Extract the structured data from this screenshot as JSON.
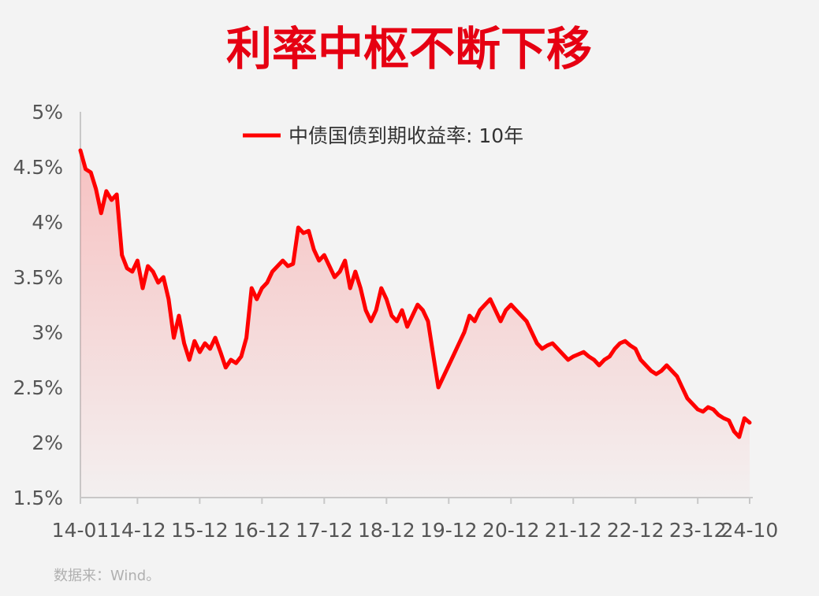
{
  "title": "利率中枢不断下移",
  "source": "数据来：Wind。",
  "colors": {
    "line": "#ff0000",
    "title": "#e60012",
    "axis": "#c8c8c8",
    "background": "#f3f3f3"
  },
  "chart_data": {
    "type": "area",
    "title": "利率中枢不断下移",
    "ylim": [
      1.5,
      5.0
    ],
    "yticks": [
      "1.5%",
      "2%",
      "2.5%",
      "3%",
      "3.5%",
      "4%",
      "4.5%",
      "5%"
    ],
    "xticks": [
      "14-01",
      "14-12",
      "15-12",
      "16-12",
      "17-12",
      "18-12",
      "19-12",
      "20-12",
      "21-12",
      "22-12",
      "23-12",
      "24-10"
    ],
    "legend": "top-center",
    "grid": false,
    "series": [
      {
        "name": "中债国债到期收益率: 10年",
        "x": [
          "14-01",
          "14-02",
          "14-03",
          "14-04",
          "14-05",
          "14-06",
          "14-07",
          "14-08",
          "14-09",
          "14-10",
          "14-11",
          "14-12",
          "15-01",
          "15-02",
          "15-03",
          "15-04",
          "15-05",
          "15-06",
          "15-07",
          "15-08",
          "15-09",
          "15-10",
          "15-11",
          "15-12",
          "16-01",
          "16-02",
          "16-03",
          "16-04",
          "16-05",
          "16-06",
          "16-07",
          "16-08",
          "16-09",
          "16-10",
          "16-11",
          "16-12",
          "17-01",
          "17-02",
          "17-03",
          "17-04",
          "17-05",
          "17-06",
          "17-07",
          "17-08",
          "17-09",
          "17-10",
          "17-11",
          "17-12",
          "18-01",
          "18-02",
          "18-03",
          "18-04",
          "18-05",
          "18-06",
          "18-07",
          "18-08",
          "18-09",
          "18-10",
          "18-11",
          "18-12",
          "19-01",
          "19-02",
          "19-03",
          "19-04",
          "19-05",
          "19-06",
          "19-07",
          "19-08",
          "19-09",
          "19-10",
          "19-11",
          "19-12",
          "20-01",
          "20-02",
          "20-03",
          "20-04",
          "20-05",
          "20-06",
          "20-07",
          "20-08",
          "20-09",
          "20-10",
          "20-11",
          "20-12",
          "21-01",
          "21-02",
          "21-03",
          "21-04",
          "21-05",
          "21-06",
          "21-07",
          "21-08",
          "21-09",
          "21-10",
          "21-11",
          "21-12",
          "22-01",
          "22-02",
          "22-03",
          "22-04",
          "22-05",
          "22-06",
          "22-07",
          "22-08",
          "22-09",
          "22-10",
          "22-11",
          "22-12",
          "23-01",
          "23-02",
          "23-03",
          "23-04",
          "23-05",
          "23-06",
          "23-07",
          "23-08",
          "23-09",
          "23-10",
          "23-11",
          "23-12",
          "24-01",
          "24-02",
          "24-03",
          "24-04",
          "24-05",
          "24-06",
          "24-07",
          "24-08",
          "24-09",
          "24-10"
        ],
        "values": [
          4.65,
          4.48,
          4.45,
          4.3,
          4.08,
          4.28,
          4.2,
          4.25,
          3.7,
          3.58,
          3.55,
          3.65,
          3.4,
          3.6,
          3.55,
          3.45,
          3.5,
          3.3,
          2.95,
          3.15,
          2.9,
          2.75,
          2.92,
          2.82,
          2.9,
          2.85,
          2.95,
          2.82,
          2.68,
          2.75,
          2.72,
          2.78,
          2.95,
          3.4,
          3.3,
          3.4,
          3.45,
          3.55,
          3.6,
          3.65,
          3.6,
          3.62,
          3.95,
          3.9,
          3.92,
          3.75,
          3.65,
          3.7,
          3.6,
          3.5,
          3.55,
          3.65,
          3.4,
          3.55,
          3.4,
          3.2,
          3.1,
          3.2,
          3.4,
          3.3,
          3.15,
          3.1,
          3.2,
          3.05,
          3.15,
          3.25,
          3.2,
          3.1,
          2.8,
          2.5,
          2.6,
          2.7,
          2.8,
          2.9,
          3.0,
          3.15,
          3.1,
          3.2,
          3.25,
          3.3,
          3.2,
          3.1,
          3.2,
          3.25,
          3.2,
          3.15,
          3.1,
          3.0,
          2.9,
          2.85,
          2.88,
          2.9,
          2.85,
          2.8,
          2.75,
          2.78,
          2.8,
          2.82,
          2.78,
          2.75,
          2.7,
          2.75,
          2.78,
          2.85,
          2.9,
          2.92,
          2.88,
          2.85,
          2.75,
          2.7,
          2.65,
          2.62,
          2.65,
          2.7,
          2.65,
          2.6,
          2.5,
          2.4,
          2.35,
          2.3,
          2.28,
          2.32,
          2.3,
          2.25,
          2.22,
          2.2,
          2.1,
          2.05,
          2.22,
          2.18
        ]
      }
    ]
  }
}
